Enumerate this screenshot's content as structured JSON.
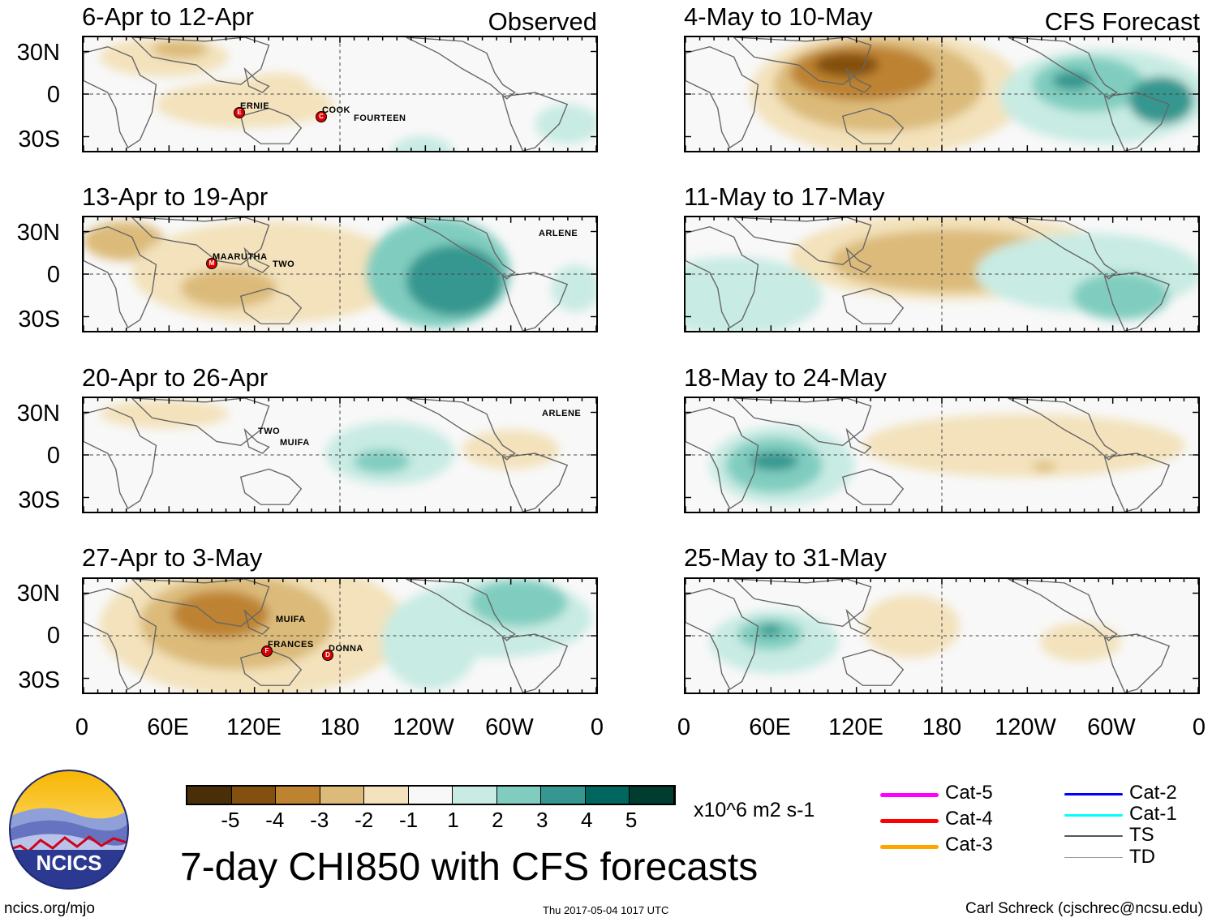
{
  "panels": [
    {
      "title": "6-Apr to 12-Apr",
      "label": "Observed",
      "storms": [
        {
          "name": "ERNIE",
          "marker": "E"
        },
        {
          "name": "COOK",
          "marker": "C"
        },
        {
          "name": "FOURTEEN",
          "marker": ""
        }
      ]
    },
    {
      "title": "4-May to 10-May",
      "label": "CFS Forecast",
      "storms": []
    },
    {
      "title": "13-Apr to 19-Apr",
      "label": "",
      "storms": [
        {
          "name": "MAARUTHA",
          "marker": "M"
        },
        {
          "name": "TWO",
          "marker": ""
        },
        {
          "name": "ARLENE",
          "marker": ""
        }
      ]
    },
    {
      "title": "11-May to 17-May",
      "label": "",
      "storms": []
    },
    {
      "title": "20-Apr to 26-Apr",
      "label": "",
      "storms": [
        {
          "name": "TWO",
          "marker": ""
        },
        {
          "name": "MUIFA",
          "marker": ""
        },
        {
          "name": "ARLENE",
          "marker": ""
        }
      ]
    },
    {
      "title": "18-May to 24-May",
      "label": "",
      "storms": []
    },
    {
      "title": "27-Apr to 3-May",
      "label": "",
      "storms": [
        {
          "name": "MUIFA",
          "marker": ""
        },
        {
          "name": "FRANCES",
          "marker": "F"
        },
        {
          "name": "DONNA",
          "marker": "D"
        }
      ]
    },
    {
      "title": "25-May to 31-May",
      "label": "",
      "storms": []
    }
  ],
  "lat_labels": [
    "30N",
    "0",
    "30S"
  ],
  "lon_labels": [
    "0",
    "60E",
    "120E",
    "180",
    "120W",
    "60W",
    "0"
  ],
  "colorbar": {
    "labels": [
      "-5",
      "-4",
      "-3",
      "-2",
      "-1",
      "1",
      "2",
      "3",
      "4",
      "5"
    ],
    "colors": [
      "#4a2e08",
      "#83500f",
      "#be8330",
      "#dcbb7a",
      "#f3e2bb",
      "#f8f8f8",
      "#c8ebe3",
      "#80cdc0",
      "#35978f",
      "#01665e",
      "#003c30"
    ],
    "units": "x10^6 m2 s-1"
  },
  "legend": [
    {
      "label": "Cat-5",
      "color": "#ff00ff"
    },
    {
      "label": "Cat-4",
      "color": "#ff0000"
    },
    {
      "label": "Cat-3",
      "color": "#ffa500"
    },
    {
      "label": "Cat-2",
      "color": "#0000ff"
    },
    {
      "label": "Cat-1",
      "color": "#00ffff"
    },
    {
      "label": "TS",
      "color": "#555555"
    },
    {
      "label": "TD",
      "color": "#999999"
    }
  ],
  "logo": {
    "text": "NCICS"
  },
  "main_title": "7-day CHI850 with CFS forecasts",
  "footer": {
    "left": "ncics.org/mjo",
    "center": "Thu 2017-05-04 1017 UTC",
    "right": "Carl Schreck (cjschrec@ncsu.edu)"
  }
}
